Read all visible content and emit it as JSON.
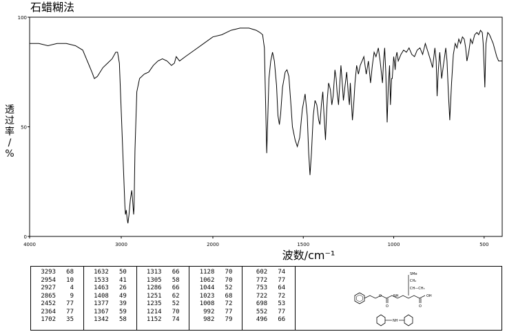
{
  "title": "石蜡糊法",
  "chart_data": {
    "type": "line",
    "title": "石蜡糊法",
    "xlabel": "波数/cm⁻¹",
    "ylabel": "透过率/%",
    "xlim": [
      4000,
      400
    ],
    "ylim": [
      0,
      100
    ],
    "x_ticks": [
      4000,
      3000,
      2000,
      1500,
      1000,
      500
    ],
    "y_ticks": [
      100,
      50,
      0
    ],
    "x_tick_labels": [
      "4000",
      "3000",
      "2000",
      "1500",
      "1000",
      "500"
    ],
    "y_tick_labels": [
      "100",
      "50",
      "0"
    ],
    "grid": false,
    "series": [
      {
        "x": [
          4000,
          3900,
          3800,
          3700,
          3600,
          3500,
          3420,
          3360,
          3320,
          3293,
          3260,
          3200,
          3150,
          3100,
          3060,
          3040,
          3020,
          3000,
          2980,
          2960,
          2954,
          2945,
          2935,
          2927,
          2915,
          2900,
          2885,
          2875,
          2865,
          2860,
          2850,
          2830,
          2800,
          2750,
          2700,
          2650,
          2600,
          2550,
          2500,
          2452,
          2420,
          2400,
          2364,
          2300,
          2200,
          2100,
          2000,
          1950,
          1900,
          1850,
          1800,
          1760,
          1740,
          1725,
          1715,
          1708,
          1702,
          1696,
          1690,
          1680,
          1670,
          1660,
          1648,
          1640,
          1632,
          1625,
          1615,
          1600,
          1590,
          1580,
          1570,
          1560,
          1545,
          1533,
          1520,
          1505,
          1490,
          1478,
          1470,
          1463,
          1455,
          1445,
          1435,
          1425,
          1415,
          1408,
          1400,
          1392,
          1385,
          1377,
          1372,
          1367,
          1360,
          1350,
          1342,
          1335,
          1325,
          1318,
          1313,
          1305,
          1298,
          1292,
          1286,
          1278,
          1270,
          1260,
          1251,
          1245,
          1240,
          1235,
          1228,
          1220,
          1214,
          1205,
          1195,
          1185,
          1175,
          1165,
          1152,
          1140,
          1128,
          1118,
          1108,
          1098,
          1085,
          1075,
          1062,
          1056,
          1050,
          1044,
          1036,
          1030,
          1023,
          1018,
          1012,
          1008,
          1000,
          995,
          992,
          987,
          982,
          975,
          960,
          945,
          930,
          915,
          900,
          885,
          870,
          855,
          840,
          825,
          810,
          795,
          785,
          772,
          765,
          760,
          753,
          745,
          735,
          722,
          712,
          705,
          698,
          690,
          680,
          670,
          660,
          650,
          640,
          630,
          620,
          610,
          602,
          595,
          585,
          575,
          565,
          552,
          540,
          530,
          520,
          510,
          505,
          500,
          496,
          490,
          480,
          470,
          460,
          450,
          440,
          430,
          420,
          410,
          400
        ],
        "y": [
          88,
          88,
          87,
          88,
          88,
          87,
          85,
          79,
          75,
          72,
          73,
          77,
          79,
          81,
          84,
          84,
          79,
          57,
          35,
          14,
          10,
          12,
          8,
          6,
          10,
          17,
          21,
          16,
          10,
          13,
          39,
          66,
          72,
          74,
          75,
          78,
          80,
          81,
          80,
          78,
          79,
          82,
          80,
          82,
          85,
          88,
          91,
          92,
          94,
          95,
          95,
          94,
          93,
          92,
          86,
          60,
          38,
          55,
          72,
          80,
          84,
          80,
          69,
          55,
          51,
          56,
          68,
          75,
          76,
          73,
          62,
          50,
          44,
          41,
          45,
          58,
          65,
          55,
          38,
          28,
          38,
          55,
          62,
          60,
          53,
          51,
          60,
          66,
          55,
          44,
          55,
          63,
          70,
          67,
          60,
          64,
          76,
          72,
          66,
          60,
          70,
          78,
          72,
          62,
          68,
          75,
          65,
          60,
          70,
          63,
          53,
          62,
          70,
          78,
          74,
          78,
          80,
          82,
          74,
          80,
          70,
          78,
          84,
          82,
          86,
          80,
          70,
          80,
          86,
          75,
          52,
          68,
          78,
          60,
          72,
          72,
          82,
          79,
          76,
          82,
          84,
          80,
          83,
          85,
          84,
          86,
          83,
          82,
          85,
          86,
          83,
          88,
          84,
          80,
          77,
          86,
          80,
          64,
          76,
          84,
          72,
          80,
          86,
          80,
          66,
          53,
          70,
          83,
          88,
          86,
          90,
          88,
          91,
          90,
          86,
          80,
          84,
          90,
          88,
          92,
          93,
          92,
          94,
          93,
          88,
          77,
          68,
          88,
          93,
          92,
          90,
          88,
          85,
          82,
          80,
          80,
          80
        ]
      }
    ],
    "peaks": [
      [
        {
          "wn": 3293,
          "t": 68
        },
        {
          "wn": 2954,
          "t": 10
        },
        {
          "wn": 2927,
          "t": 4
        },
        {
          "wn": 2865,
          "t": 9
        },
        {
          "wn": 2452,
          "t": 77
        },
        {
          "wn": 2364,
          "t": 77
        },
        {
          "wn": 1702,
          "t": 35
        }
      ],
      [
        {
          "wn": 1632,
          "t": 50
        },
        {
          "wn": 1533,
          "t": 41
        },
        {
          "wn": 1463,
          "t": 26
        },
        {
          "wn": 1408,
          "t": 49
        },
        {
          "wn": 1377,
          "t": 39
        },
        {
          "wn": 1367,
          "t": 59
        },
        {
          "wn": 1342,
          "t": 58
        }
      ],
      [
        {
          "wn": 1313,
          "t": 66
        },
        {
          "wn": 1305,
          "t": 58
        },
        {
          "wn": 1286,
          "t": 66
        },
        {
          "wn": 1251,
          "t": 62
        },
        {
          "wn": 1235,
          "t": 52
        },
        {
          "wn": 1214,
          "t": 70
        },
        {
          "wn": 1152,
          "t": 74
        }
      ],
      [
        {
          "wn": 1128,
          "t": 70
        },
        {
          "wn": 1062,
          "t": 70
        },
        {
          "wn": 1044,
          "t": 52
        },
        {
          "wn": 1023,
          "t": 68
        },
        {
          "wn": 1008,
          "t": 72
        },
        {
          "wn": 992,
          "t": 77
        },
        {
          "wn": 982,
          "t": 79
        }
      ],
      [
        {
          "wn": 602,
          "t": 74
        },
        {
          "wn": 772,
          "t": 77
        },
        {
          "wn": 753,
          "t": 64
        },
        {
          "wn": 722,
          "t": 72
        },
        {
          "wn": 698,
          "t": 53
        },
        {
          "wn": 552,
          "t": 77
        },
        {
          "wn": 496,
          "t": 66
        }
      ]
    ]
  },
  "structure_labels": {
    "top_group": "SMe",
    "ch2_1": "CH₂",
    "ch_ch3": "CH—CH₃",
    "ester_o": "O",
    "nh": "NH",
    "oh": "OH",
    "carbonyl_o1": "O",
    "carbonyl_o2": "O",
    "salt_nh": "NH"
  },
  "colors": {
    "line": "#000000",
    "background": "#ffffff"
  }
}
